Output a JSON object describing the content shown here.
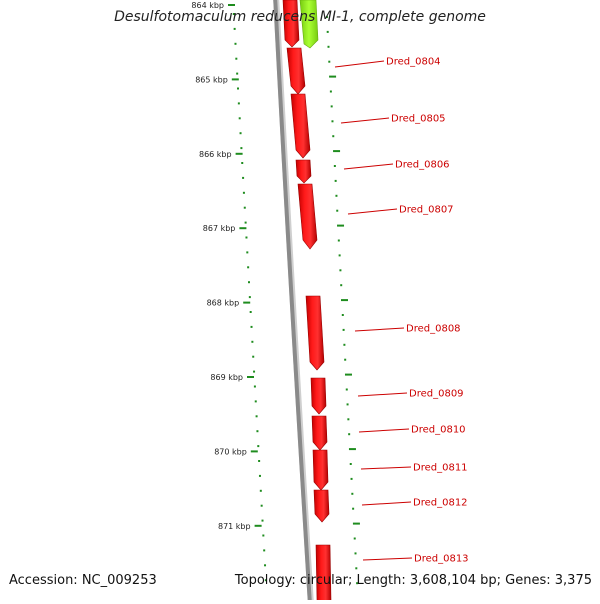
{
  "title": "Desulfotomaculum reducens MI-1, complete genome",
  "footer": {
    "accession": "Accession: NC_009253",
    "topology": "Topology: circular; Length: 3,608,104 bp; Genes: 3,375"
  },
  "colors": {
    "gene": "#ff0000",
    "gene_label": "#cc0000",
    "tick": "#1e8c1e",
    "backbone": "#8a8a8a",
    "green_feature": "#99ee22"
  },
  "ruler": [
    {
      "label": "864 kbp",
      "kbp": 864
    },
    {
      "label": "865 kbp",
      "kbp": 865
    },
    {
      "label": "866 kbp",
      "kbp": 866
    },
    {
      "label": "867 kbp",
      "kbp": 867
    },
    {
      "label": "868 kbp",
      "kbp": 868
    },
    {
      "label": "869 kbp",
      "kbp": 869
    },
    {
      "label": "870 kbp",
      "kbp": 870
    },
    {
      "label": "871 kbp",
      "kbp": 871
    }
  ],
  "genes": [
    {
      "label": "Dred_0804"
    },
    {
      "label": "Dred_0805"
    },
    {
      "label": "Dred_0806"
    },
    {
      "label": "Dred_0807"
    },
    {
      "label": "Dred_0808"
    },
    {
      "label": "Dred_0809"
    },
    {
      "label": "Dred_0810"
    },
    {
      "label": "Dred_0811"
    },
    {
      "label": "Dred_0812"
    },
    {
      "label": "Dred_0813"
    }
  ]
}
